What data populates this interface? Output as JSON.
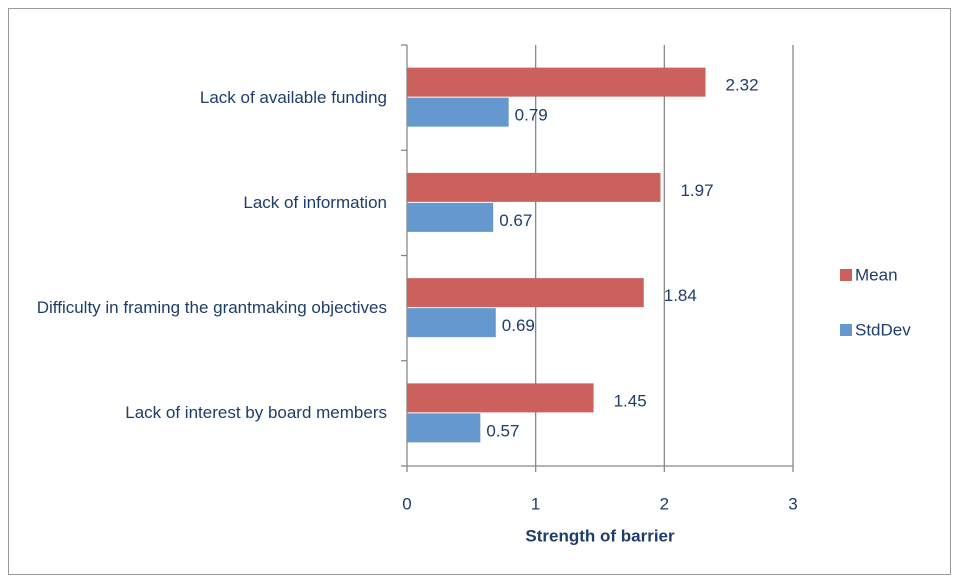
{
  "chart_data": {
    "type": "barh",
    "categories": [
      "Lack of available funding",
      "Lack of information",
      "Difficulty in framing the grantmaking objectives",
      "Lack of interest by board members"
    ],
    "series": [
      {
        "name": "Mean",
        "color": "#cb605c",
        "values": [
          2.32,
          1.97,
          1.84,
          1.45
        ]
      },
      {
        "name": "StdDev",
        "color": "#6598cf",
        "values": [
          0.79,
          0.67,
          0.69,
          0.57
        ]
      }
    ],
    "x_label": "Strength of barrier",
    "xlim": [
      0,
      3
    ],
    "xticks": [
      0,
      1,
      2,
      3
    ],
    "grid": true,
    "legend": "right"
  }
}
